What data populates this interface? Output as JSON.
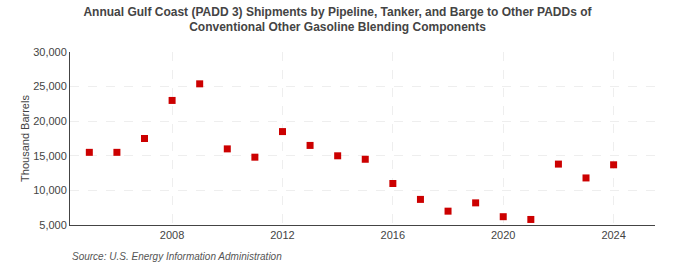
{
  "chart_data": {
    "type": "scatter",
    "title": "Annual Gulf Coast (PADD 3) Shipments by Pipeline, Tanker, and Barge to Other PADDs of\nConventional Other Gasoline Blending Components",
    "ylabel": "Thousand Barrels",
    "source": "Source: U.S. Energy Information Administration",
    "x": [
      2005,
      2006,
      2007,
      2008,
      2009,
      2010,
      2011,
      2012,
      2013,
      2014,
      2015,
      2016,
      2017,
      2018,
      2019,
      2020,
      2021,
      2022,
      2023,
      2024
    ],
    "values": [
      15500,
      15500,
      17500,
      23000,
      25400,
      16000,
      14800,
      18500,
      16500,
      15000,
      14500,
      11000,
      8700,
      7000,
      8200,
      6200,
      5800,
      13800,
      11800,
      13700
    ],
    "color": "#cc0000",
    "marker": "square",
    "xlim": [
      2004.3,
      2025.5
    ],
    "xticks": [
      2008,
      2012,
      2016,
      2020,
      2024
    ],
    "ylim": [
      5000,
      30000
    ],
    "yticks": [
      {
        "value": 5000,
        "label": "5,000"
      },
      {
        "value": 10000,
        "label": "10,000"
      },
      {
        "value": 15000,
        "label": "15,000"
      },
      {
        "value": 20000,
        "label": "20,000"
      },
      {
        "value": 25000,
        "label": "25,000"
      },
      {
        "value": 30000,
        "label": "30,000"
      }
    ],
    "grid": true
  }
}
